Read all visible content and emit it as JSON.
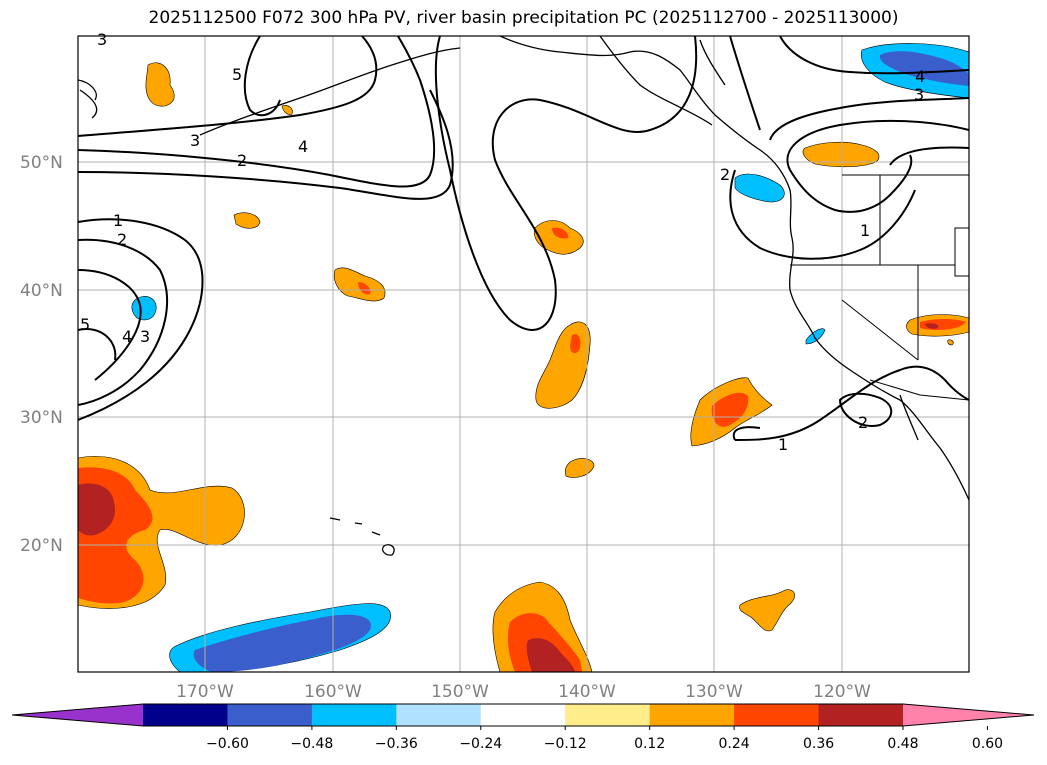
{
  "title": "2025112500 F072 300 hPa PV, river basin precipitation PC (2025112700 - 2025113000)",
  "map": {
    "lat_labels": [
      "50°N",
      "40°N",
      "30°N",
      "20°N"
    ],
    "lon_labels": [
      "170°W",
      "160°W",
      "150°W",
      "140°W",
      "130°W",
      "120°W"
    ],
    "contour_labels": [
      "3",
      "5",
      "4",
      "3",
      "2",
      "4",
      "5",
      "3",
      "4",
      "3",
      "2",
      "1",
      "2",
      "1",
      "2",
      "1"
    ]
  },
  "colorbar": {
    "colors": [
      "#9932cc",
      "#00008b",
      "#3a5fcd",
      "#00bfff",
      "#b0e2ff",
      "#ffffff",
      "#ffec8b",
      "#ffa500",
      "#ff4500",
      "#b22222",
      "#ff82ab"
    ],
    "tick_labels": [
      "−0.60",
      "−0.48",
      "−0.36",
      "−0.24",
      "−0.12",
      "0.12",
      "0.24",
      "0.36",
      "0.48",
      "0.60"
    ]
  }
}
